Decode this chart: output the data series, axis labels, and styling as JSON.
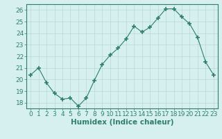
{
  "x": [
    0,
    1,
    2,
    3,
    4,
    5,
    6,
    7,
    8,
    9,
    10,
    11,
    12,
    13,
    14,
    15,
    16,
    17,
    18,
    19,
    20,
    21,
    22,
    23
  ],
  "y": [
    20.4,
    21.0,
    19.7,
    18.8,
    18.3,
    18.4,
    17.7,
    18.4,
    19.9,
    21.3,
    22.1,
    22.7,
    23.5,
    24.6,
    24.1,
    24.5,
    25.3,
    26.1,
    26.1,
    25.4,
    24.8,
    23.6,
    21.5,
    20.4
  ],
  "line_color": "#2e7d6e",
  "marker": "+",
  "marker_size": 4,
  "bg_color": "#d6f0ef",
  "grid_color": "#b8d8d4",
  "xlabel": "Humidex (Indice chaleur)",
  "ylim": [
    17.5,
    26.5
  ],
  "xlim": [
    -0.5,
    23.5
  ],
  "yticks": [
    18,
    19,
    20,
    21,
    22,
    23,
    24,
    25,
    26
  ],
  "xticks": [
    0,
    1,
    2,
    3,
    4,
    5,
    6,
    7,
    8,
    9,
    10,
    11,
    12,
    13,
    14,
    15,
    16,
    17,
    18,
    19,
    20,
    21,
    22,
    23
  ],
  "axis_color": "#2e7d6e",
  "tick_label_color": "#2e7d6e",
  "xlabel_color": "#2e7d6e",
  "xlabel_fontsize": 7.5,
  "tick_fontsize": 6.5
}
